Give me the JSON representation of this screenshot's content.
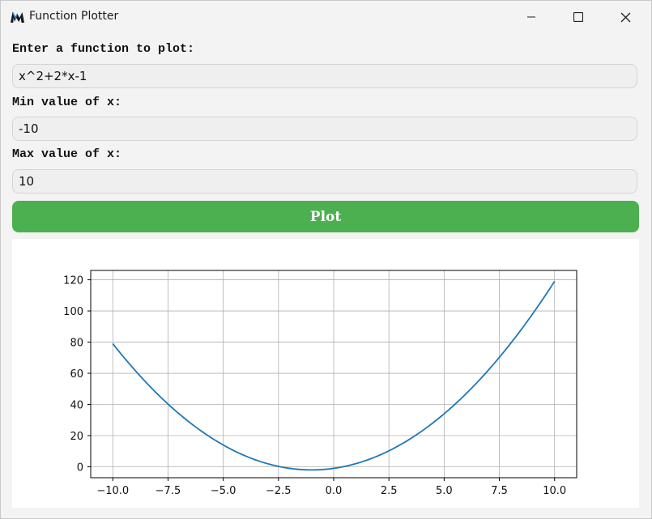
{
  "window": {
    "title": "Function Plotter",
    "app_icon": "matplotlib-logo-icon",
    "controls": [
      "minimize-icon",
      "maximize-icon",
      "close-icon"
    ]
  },
  "form": {
    "function_label": "Enter a function to plot:",
    "function_value": "x^2+2*x-1",
    "min_label": "Min value of x:",
    "min_value": "-10",
    "max_label": "Max value of x:",
    "max_value": "10",
    "plot_button": "Plot"
  },
  "colors": {
    "button": "#4caf50",
    "line": "#1f77b4",
    "grid": "#b0b0b0"
  },
  "chart_data": {
    "type": "line",
    "function": "x^2+2*x-1",
    "x_range": [
      -10,
      10
    ],
    "xlim": [
      -11,
      11
    ],
    "ylim": [
      -7,
      126
    ],
    "xticks": [
      -10,
      -7.5,
      -5,
      -2.5,
      0,
      2.5,
      5,
      7.5,
      10
    ],
    "xtick_labels": [
      "−10.0",
      "−7.5",
      "−5.0",
      "−2.5",
      "0.0",
      "2.5",
      "5.0",
      "7.5",
      "10.0"
    ],
    "yticks": [
      0,
      20,
      40,
      60,
      80,
      100,
      120
    ],
    "ytick_labels": [
      "0",
      "20",
      "40",
      "60",
      "80",
      "100",
      "120"
    ],
    "grid": true,
    "x": [
      -10,
      -9,
      -8,
      -7,
      -6,
      -5,
      -4,
      -3,
      -2,
      -1,
      0,
      1,
      2,
      3,
      4,
      5,
      6,
      7,
      8,
      9,
      10
    ],
    "y": [
      79,
      62,
      47,
      34,
      23,
      14,
      7,
      2,
      -1,
      -2,
      -1,
      2,
      7,
      14,
      23,
      34,
      47,
      62,
      79,
      98,
      119
    ]
  }
}
